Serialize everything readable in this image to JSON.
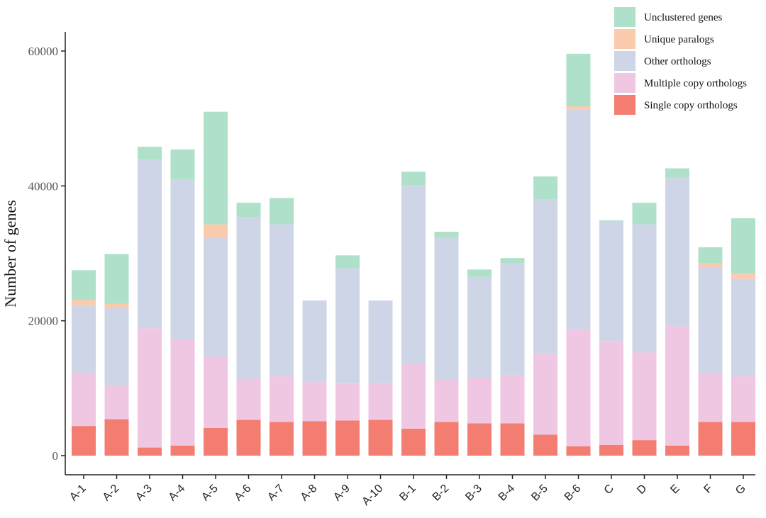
{
  "chart_data": {
    "type": "bar",
    "stacked": true,
    "title": "",
    "xlabel": "",
    "ylabel": "Number of genes",
    "ylim": [
      0,
      63000
    ],
    "yticks": [
      0,
      20000,
      40000,
      60000
    ],
    "ytick_labels": [
      "0",
      "20000",
      "40000",
      "60000"
    ],
    "grid": false,
    "legend_position": "top-right",
    "categories": [
      "A-1",
      "A-2",
      "A-3",
      "A-4",
      "A-5",
      "A-6",
      "A-7",
      "A-8",
      "A-9",
      "A-10",
      "B-1",
      "B-2",
      "B-3",
      "B-4",
      "B-5",
      "B-6",
      "C",
      "D",
      "E",
      "F",
      "G"
    ],
    "series": [
      {
        "name": "Single copy orthologs",
        "color": "#f47d71",
        "values": [
          4400,
          5400,
          1200,
          1500,
          4100,
          5300,
          5000,
          5100,
          5200,
          5300,
          4000,
          5000,
          4800,
          4800,
          3100,
          1400,
          1600,
          2300,
          1500,
          5000,
          5000
        ]
      },
      {
        "name": "Multiple copy orthologs",
        "color": "#efc7e3",
        "values": [
          7900,
          5000,
          17700,
          15800,
          10600,
          6100,
          6800,
          5800,
          5500,
          5500,
          9700,
          6300,
          6700,
          7100,
          12000,
          17400,
          15400,
          13000,
          17700,
          7300,
          6800
        ]
      },
      {
        "name": "Other orthologs",
        "color": "#cdd5e6",
        "values": [
          10000,
          11500,
          25000,
          23700,
          17600,
          24000,
          22500,
          12100,
          17100,
          12200,
          26400,
          21000,
          15000,
          16600,
          22900,
          32500,
          17800,
          19000,
          22000,
          15700,
          14400
        ]
      },
      {
        "name": "Unique paralogs",
        "color": "#fbcbae",
        "values": [
          800,
          600,
          0,
          0,
          2000,
          0,
          0,
          0,
          0,
          0,
          0,
          0,
          0,
          0,
          0,
          500,
          0,
          0,
          0,
          500,
          800
        ]
      },
      {
        "name": "Unclustered genes",
        "color": "#afe0c9",
        "values": [
          4400,
          7400,
          1900,
          4400,
          16700,
          2100,
          3900,
          0,
          1900,
          0,
          2000,
          900,
          1100,
          800,
          3400,
          7800,
          100,
          3200,
          1400,
          2400,
          8200
        ]
      }
    ],
    "legend_order": [
      "Unclustered genes",
      "Unique paralogs",
      "Other orthologs",
      "Multiple copy orthologs",
      "Single copy orthologs"
    ]
  }
}
